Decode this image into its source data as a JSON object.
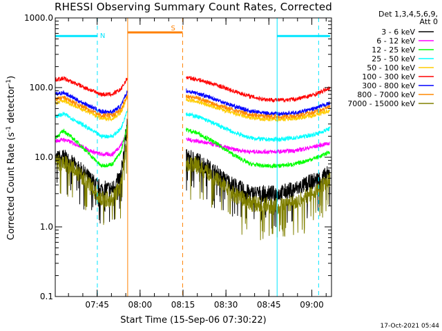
{
  "chart_data": {
    "type": "line",
    "title": "RHESSI Observing Summary Count Rates, Corrected",
    "xlabel": "Start Time (15-Sep-06 07:30:22)",
    "ylabel_main": "Corrected Count Rate (s",
    "ylabel_sup1": "-1",
    "ylabel_mid": " detector",
    "ylabel_sup2": "-1",
    "ylabel_end": ")",
    "yscale": "log",
    "ylim": [
      0.1,
      1000
    ],
    "xlim_minutes": [
      0,
      96.5
    ],
    "x_tick_labels": [
      "07:45",
      "08:00",
      "08:15",
      "08:30",
      "08:45",
      "09:00"
    ],
    "x_tick_minutes": [
      14.63,
      29.63,
      44.63,
      59.63,
      74.63,
      89.63
    ],
    "y_tick_labels": [
      "0.1",
      "1.0",
      "10.0",
      "100.0",
      "1000.0"
    ],
    "y_tick_values": [
      0.1,
      1,
      10,
      100,
      1000
    ],
    "legend_header": [
      "Det 1,3,4,5,6,9,",
      "Att 0"
    ],
    "gap_minutes": [
      25.3,
      45.7
    ],
    "series": [
      {
        "name": "3 - 6 keV",
        "color": "#000000",
        "x": [
          0,
          3,
          8,
          13,
          16,
          20,
          23,
          25.3,
          45.7,
          50,
          56,
          62,
          68,
          73,
          78,
          84,
          90,
          93,
          96
        ],
        "y": [
          9.5,
          10,
          7,
          4.5,
          3.5,
          3.5,
          5.5,
          35,
          10,
          9,
          6,
          4,
          3,
          3,
          3,
          3.5,
          4.5,
          5,
          6
        ]
      },
      {
        "name": "6 - 12 keV",
        "color": "#ff00ff",
        "x": [
          0,
          3,
          8,
          13,
          16,
          20,
          23,
          25.3,
          45.7,
          50,
          56,
          62,
          68,
          73,
          78,
          84,
          90,
          93,
          96
        ],
        "y": [
          17,
          18,
          15,
          12,
          11,
          11,
          15,
          25,
          18,
          17,
          15,
          13,
          12,
          12,
          12,
          12.5,
          14,
          15,
          16
        ]
      },
      {
        "name": "12 - 25 keV",
        "color": "#00ff00",
        "x": [
          0,
          3,
          8,
          13,
          16,
          20,
          23,
          25.3,
          45.7,
          50,
          56,
          62,
          68,
          73,
          78,
          84,
          90,
          93,
          96
        ],
        "y": [
          19,
          24,
          16,
          10,
          7.5,
          8,
          12,
          30,
          25,
          22,
          16,
          11,
          8,
          7.5,
          7.5,
          8,
          9.5,
          10.5,
          12
        ]
      },
      {
        "name": "25 - 50 keV",
        "color": "#00ffff",
        "x": [
          0,
          3,
          8,
          13,
          16,
          20,
          23,
          25.3,
          45.7,
          50,
          56,
          62,
          68,
          73,
          78,
          84,
          90,
          93,
          96
        ],
        "y": [
          38,
          42,
          32,
          24,
          20,
          20,
          26,
          50,
          42,
          38,
          30,
          23,
          19,
          18,
          18,
          19,
          21,
          23,
          26
        ]
      },
      {
        "name": "50 - 100 keV",
        "color": "#ffcc00",
        "x": [
          0,
          3,
          8,
          13,
          16,
          20,
          23,
          25.3,
          45.7,
          50,
          56,
          62,
          68,
          73,
          78,
          84,
          90,
          93,
          96
        ],
        "y": [
          60,
          65,
          52,
          42,
          36,
          36,
          44,
          75,
          68,
          62,
          52,
          43,
          37,
          35,
          35,
          36,
          40,
          43,
          47
        ]
      },
      {
        "name": "100 - 300 keV",
        "color": "#ff0000",
        "x": [
          0,
          3,
          8,
          13,
          16,
          20,
          23,
          25.3,
          45.7,
          50,
          56,
          62,
          68,
          73,
          78,
          84,
          90,
          93,
          96
        ],
        "y": [
          130,
          135,
          110,
          90,
          80,
          80,
          95,
          140,
          140,
          130,
          110,
          90,
          75,
          68,
          66,
          68,
          78,
          87,
          100
        ]
      },
      {
        "name": "300 - 800 keV",
        "color": "#0000ff",
        "x": [
          0,
          3,
          8,
          13,
          16,
          20,
          23,
          25.3,
          45.7,
          50,
          56,
          62,
          68,
          73,
          78,
          84,
          90,
          93,
          96
        ],
        "y": [
          80,
          85,
          65,
          52,
          45,
          45,
          55,
          90,
          90,
          82,
          68,
          55,
          46,
          43,
          42,
          43,
          49,
          54,
          60
        ]
      },
      {
        "name": "800 - 7000 keV",
        "color": "#ff8800",
        "x": [
          0,
          3,
          8,
          13,
          16,
          20,
          23,
          25.3,
          45.7,
          50,
          56,
          62,
          68,
          73,
          78,
          84,
          90,
          93,
          96
        ],
        "y": [
          68,
          72,
          57,
          46,
          40,
          40,
          48,
          80,
          76,
          70,
          58,
          48,
          41,
          39,
          38,
          39,
          44,
          48,
          53
        ]
      },
      {
        "name": "7000 - 15000 keV",
        "color": "#808000",
        "x": [
          0,
          3,
          8,
          13,
          16,
          20,
          23,
          25.3,
          45.7,
          50,
          56,
          62,
          68,
          73,
          78,
          84,
          90,
          93,
          96
        ],
        "y": [
          8,
          8.5,
          6,
          3.5,
          2.5,
          2.5,
          4,
          25,
          8,
          7.5,
          5,
          3,
          2.2,
          2,
          2,
          2.3,
          3,
          4,
          5
        ]
      }
    ],
    "annotations": [
      {
        "label": "N",
        "color": "#00e5ff",
        "x_start": 0,
        "x_end": 14.7,
        "level": 550
      },
      {
        "label": "S",
        "color": "#ff8000",
        "x_start": 25.3,
        "x_end": 44.5,
        "level": 620
      },
      {
        "label": "",
        "color": "#00e5ff",
        "x_start": 77.5,
        "x_end": 96,
        "level": 550
      }
    ],
    "vlines": [
      {
        "x": 14.7,
        "color": "#00e5ff",
        "style": "dashed"
      },
      {
        "x": 25.3,
        "color": "#ff8000",
        "style": "solid"
      },
      {
        "x": 44.5,
        "color": "#ff8000",
        "style": "dashed"
      },
      {
        "x": 77.5,
        "color": "#00e5ff",
        "style": "solid"
      },
      {
        "x": 92.0,
        "color": "#00e5ff",
        "style": "dashed"
      }
    ],
    "footer_date": "17-Oct-2021 05:44"
  }
}
